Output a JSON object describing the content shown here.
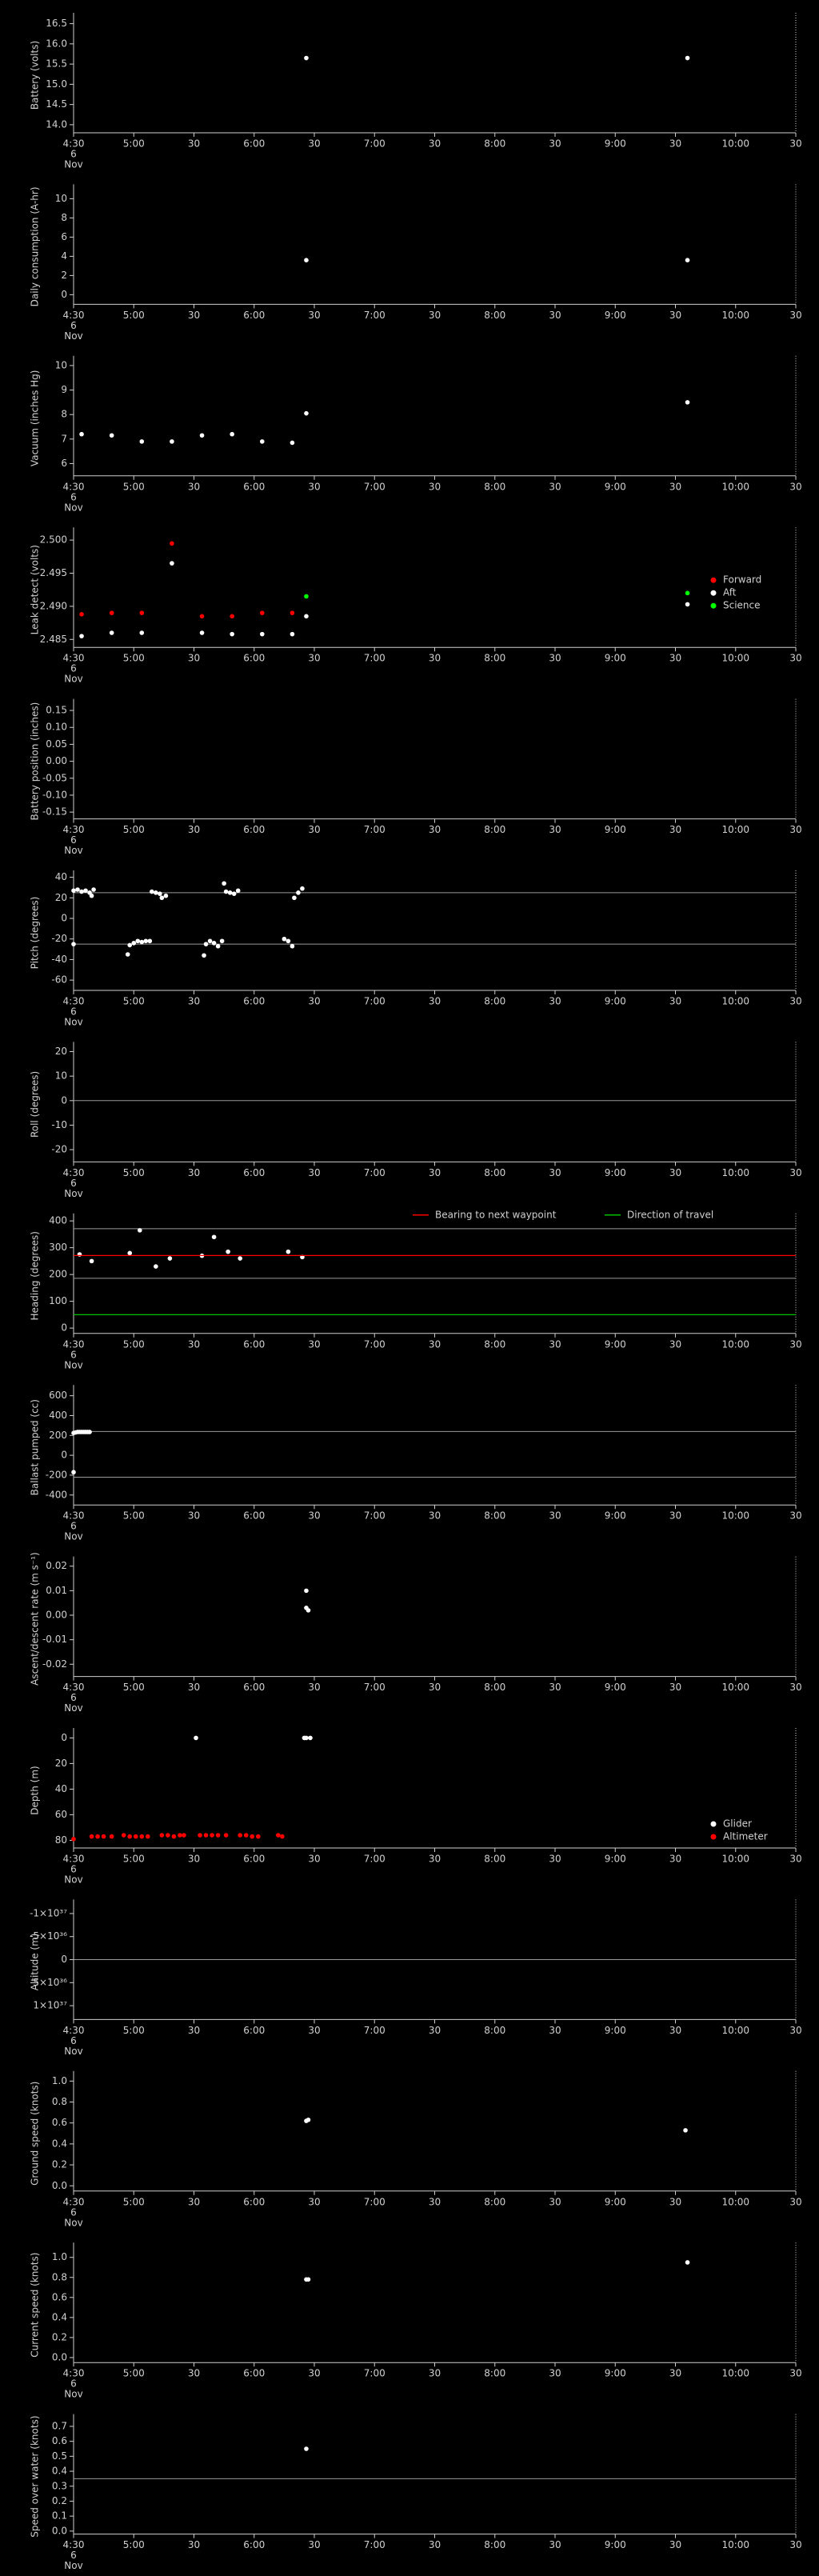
{
  "x_axis": {
    "xlim": [
      "4:30",
      "10:30"
    ],
    "xticks": [
      "4:30",
      "5:00",
      {
        "value": "5:30",
        "label": "30"
      },
      "6:00",
      {
        "value": "6:30",
        "label": "30"
      },
      "7:00",
      {
        "value": "7:30",
        "label": "30"
      },
      "8:00",
      {
        "value": "8:30",
        "label": "30"
      },
      "9:00",
      {
        "value": "9:30",
        "label": "30"
      },
      "10:00",
      {
        "value": "10:30",
        "label": "30"
      }
    ],
    "date_lines": [
      "6",
      "Nov"
    ]
  },
  "chart_data": [
    {
      "type": "scatter",
      "ylabel": "Battery (volts)",
      "ylim": [
        13.8,
        16.65
      ],
      "yticks": [
        {
          "value": 14,
          "label": "14.0"
        },
        14.5,
        {
          "value": 15,
          "label": "15.0"
        },
        15.5,
        {
          "value": 16,
          "label": "16.0"
        },
        16.5
      ],
      "series": [
        {
          "color": "#ffffff",
          "x": [
            "6:26",
            "9:36"
          ],
          "values": [
            15.65,
            15.65
          ]
        }
      ]
    },
    {
      "type": "scatter",
      "ylabel": "Daily consumption (A-hr)",
      "ylim": [
        -1,
        11
      ],
      "yticks": [
        0,
        2,
        4,
        6,
        8,
        10
      ],
      "series": [
        {
          "color": "#ffffff",
          "x": [
            "6:26",
            "9:36"
          ],
          "values": [
            3.6,
            3.6
          ]
        }
      ]
    },
    {
      "type": "scatter",
      "ylabel": "Vacuum (inches Hg)",
      "ylim": [
        5.5,
        10.2
      ],
      "yticks": [
        6,
        7,
        8,
        9,
        10
      ],
      "series": [
        {
          "color": "#ffffff",
          "x": [
            "4:34",
            "4:49",
            "5:04",
            "5:19",
            "5:34",
            "5:49",
            "6:04",
            "6:19",
            "6:26",
            "9:36"
          ],
          "values": [
            7.2,
            7.15,
            6.9,
            6.9,
            7.15,
            7.2,
            6.9,
            6.85,
            8.05,
            8.5
          ]
        }
      ]
    },
    {
      "type": "scatter",
      "ylabel": "Leak detect (volts)",
      "ylim": [
        2.4838,
        2.5012
      ],
      "legend": "right",
      "yticks": [
        2.485,
        {
          "value": 2.49,
          "label": "2.490"
        },
        2.495,
        {
          "value": 2.5,
          "label": "2.500"
        }
      ],
      "series": [
        {
          "name": "Forward",
          "color": "#ff0000",
          "x": [
            "4:34",
            "4:49",
            "5:04",
            "5:19",
            "5:34",
            "5:49",
            "6:04",
            "6:19"
          ],
          "values": [
            2.4888,
            2.489,
            2.489,
            2.4995,
            2.4885,
            2.4885,
            2.489,
            2.489
          ]
        },
        {
          "name": "Aft",
          "color": "#ffffff",
          "x": [
            "4:34",
            "4:49",
            "5:04",
            "5:19",
            "5:34",
            "5:49",
            "6:04",
            "6:19",
            "6:26",
            "9:36"
          ],
          "values": [
            2.4855,
            2.486,
            2.486,
            2.4965,
            2.486,
            2.4858,
            2.4858,
            2.4858,
            2.4885,
            2.4903
          ]
        },
        {
          "name": "Science",
          "color": "#00ff00",
          "x": [
            "6:26",
            "9:36"
          ],
          "values": [
            2.4915,
            2.492
          ]
        }
      ]
    },
    {
      "type": "scatter",
      "ylabel": "Battery position (inches)",
      "ylim": [
        -0.17,
        0.17
      ],
      "yticks": [
        0.15,
        {
          "value": 0.1,
          "label": "0.10"
        },
        0.05,
        {
          "value": 0,
          "label": "0.00"
        },
        -0.05,
        {
          "value": -0.1,
          "label": "-0.10"
        },
        -0.15
      ],
      "series": []
    },
    {
      "type": "scatter",
      "ylabel": "Pitch (degrees)",
      "ylim": [
        -70,
        42
      ],
      "yticks": [
        -60,
        -40,
        -20,
        0,
        20,
        40
      ],
      "reference_lines": [
        25,
        -25
      ],
      "series": [
        {
          "color": "#ffffff",
          "x": [
            "4:30",
            "4:30",
            "4:32",
            "4:34",
            "4:36",
            "4:38",
            "4:39",
            "4:40",
            "4:57",
            "4:58",
            "5:00",
            "5:02",
            "5:04",
            "5:06",
            "5:08",
            "5:09",
            "5:11",
            "5:13",
            "5:14",
            "5:16",
            "5:35",
            "5:36",
            "5:38",
            "5:40",
            "5:42",
            "5:44",
            "5:45",
            "5:46",
            "5:48",
            "5:50",
            "5:52",
            "6:15",
            "6:17",
            "6:19",
            "6:20",
            "6:22",
            "6:24"
          ],
          "values": [
            27,
            -25,
            28,
            26,
            27,
            25,
            22,
            28,
            -35,
            -26,
            -24,
            -22,
            -23,
            -22,
            -22,
            26,
            25,
            24,
            20,
            22,
            -36,
            -25,
            -22,
            -24,
            -27,
            -22,
            34,
            26,
            25,
            24,
            27,
            -20,
            -22,
            -27,
            20,
            25,
            29
          ]
        }
      ]
    },
    {
      "type": "scatter",
      "ylabel": "Roll (degrees)",
      "ylim": [
        -25,
        22
      ],
      "yticks": [
        -20,
        -10,
        0,
        10,
        20
      ],
      "reference_lines": [
        0
      ],
      "series": []
    },
    {
      "type": "scatter",
      "ylabel": "Heading (degrees)",
      "ylim": [
        -20,
        410
      ],
      "legend": "top",
      "yticks": [
        0,
        100,
        200,
        300,
        400
      ],
      "reference_lines": [
        371,
        186
      ],
      "series": [
        {
          "color": "#ffffff",
          "x": [
            "4:33",
            "4:39",
            "4:58",
            "5:03",
            "5:11",
            "5:18",
            "5:34",
            "5:40",
            "5:47",
            "5:53",
            "6:17",
            "6:24"
          ],
          "values": [
            275,
            250,
            280,
            365,
            230,
            260,
            270,
            340,
            285,
            260,
            285,
            265
          ]
        },
        {
          "name": "Bearing to next waypoint",
          "line": true,
          "color": "#ff0000",
          "x": [
            "4:30",
            "10:30"
          ],
          "values": [
            271,
            271
          ]
        },
        {
          "name": "Direction of travel",
          "line": true,
          "color": "#00c000",
          "x": [
            "4:30",
            "10:30"
          ],
          "values": [
            50,
            50
          ]
        }
      ]
    },
    {
      "type": "scatter",
      "ylabel": "Ballast pumped (cc)",
      "ylim": [
        -500,
        660
      ],
      "yticks": [
        -400,
        -200,
        0,
        200,
        400,
        600
      ],
      "reference_lines": [
        240,
        -220
      ],
      "series": [
        {
          "color": "#ffffff",
          "x": [
            "4:30",
            "4:31",
            "4:32",
            "4:33",
            "4:34",
            "4:35",
            "4:36",
            "4:37",
            "4:38",
            "4:30"
          ],
          "values": [
            225,
            230,
            235,
            235,
            235,
            235,
            235,
            235,
            235,
            -170
          ]
        }
      ]
    },
    {
      "type": "scatter",
      "ylabel": "Ascent/descent rate (m s⁻¹)",
      "ylim": [
        -0.025,
        0.022
      ],
      "yticks": [
        -0.02,
        -0.01,
        {
          "value": 0,
          "label": "0.00"
        },
        0.01,
        0.02
      ],
      "series": [
        {
          "color": "#ffffff",
          "x": [
            "6:26",
            "6:26",
            "6:27"
          ],
          "values": [
            0.01,
            0.003,
            0.002
          ]
        }
      ]
    },
    {
      "type": "scatter",
      "ylabel": "Depth (m)",
      "ylim": [
        86,
        -4
      ],
      "legend": "bottom-right",
      "yticks": [
        0,
        20,
        40,
        60,
        80
      ],
      "series": [
        {
          "name": "Glider",
          "color": "#ffffff",
          "x": [
            "5:31",
            "6:25",
            "6:26",
            "6:28"
          ],
          "values": [
            0,
            0,
            0,
            0
          ]
        },
        {
          "name": "Altimeter",
          "color": "#ff0000",
          "x": [
            "4:30",
            "4:39",
            "4:42",
            "4:45",
            "4:49",
            "4:55",
            "4:58",
            "5:01",
            "5:04",
            "5:07",
            "5:14",
            "5:17",
            "5:20",
            "5:23",
            "5:25",
            "5:33",
            "5:36",
            "5:39",
            "5:42",
            "5:46",
            "5:53",
            "5:56",
            "5:59",
            "6:02",
            "6:12",
            "6:14"
          ],
          "values": [
            79,
            77,
            77,
            77,
            77,
            76,
            77,
            77,
            77,
            77,
            76,
            76,
            77,
            76,
            76,
            76,
            76,
            76,
            76,
            76,
            76,
            76,
            77,
            77,
            76,
            77
          ]
        }
      ]
    },
    {
      "type": "scatter",
      "ylabel": "Altitude (m)",
      "ylim": [
        1.3e+37,
        -1.2e+37
      ],
      "yticks": [
        {
          "value": -1e+37,
          "label": "-1×10³⁷"
        },
        {
          "value": -5e+36,
          "label": "-5×10³⁶"
        },
        0,
        {
          "value": 5e+36,
          "label": "5×10³⁶"
        },
        {
          "value": 1e+37,
          "label": "1×10³⁷"
        }
      ],
      "reference_lines": [
        0
      ],
      "series": []
    },
    {
      "type": "scatter",
      "ylabel": "Ground speed (knots)",
      "ylim": [
        -0.05,
        1.05
      ],
      "yticks": [
        {
          "value": 0,
          "label": "0.0"
        },
        0.2,
        0.4,
        0.6,
        0.8,
        {
          "value": 1,
          "label": "1.0"
        }
      ],
      "series": [
        {
          "color": "#ffffff",
          "x": [
            "6:26",
            "6:27",
            "9:35"
          ],
          "values": [
            0.62,
            0.63,
            0.53
          ]
        }
      ]
    },
    {
      "type": "scatter",
      "ylabel": "Current speed (knots)",
      "ylim": [
        -0.05,
        1.1
      ],
      "yticks": [
        {
          "value": 0,
          "label": "0.0"
        },
        0.2,
        0.4,
        0.6,
        0.8,
        {
          "value": 1,
          "label": "1.0"
        }
      ],
      "series": [
        {
          "color": "#ffffff",
          "x": [
            "6:26",
            "6:27",
            "9:36"
          ],
          "values": [
            0.78,
            0.78,
            0.95
          ]
        }
      ]
    },
    {
      "type": "scatter",
      "ylabel": "Speed over water (knots)",
      "ylim": [
        -0.02,
        0.75
      ],
      "yticks": [
        {
          "value": 0,
          "label": "0.0"
        },
        0.1,
        0.2,
        0.3,
        0.4,
        0.5,
        0.6,
        0.7
      ],
      "reference_lines": [
        0.35
      ],
      "series": [
        {
          "color": "#ffffff",
          "x": [
            "6:26"
          ],
          "values": [
            0.55
          ]
        }
      ]
    }
  ]
}
